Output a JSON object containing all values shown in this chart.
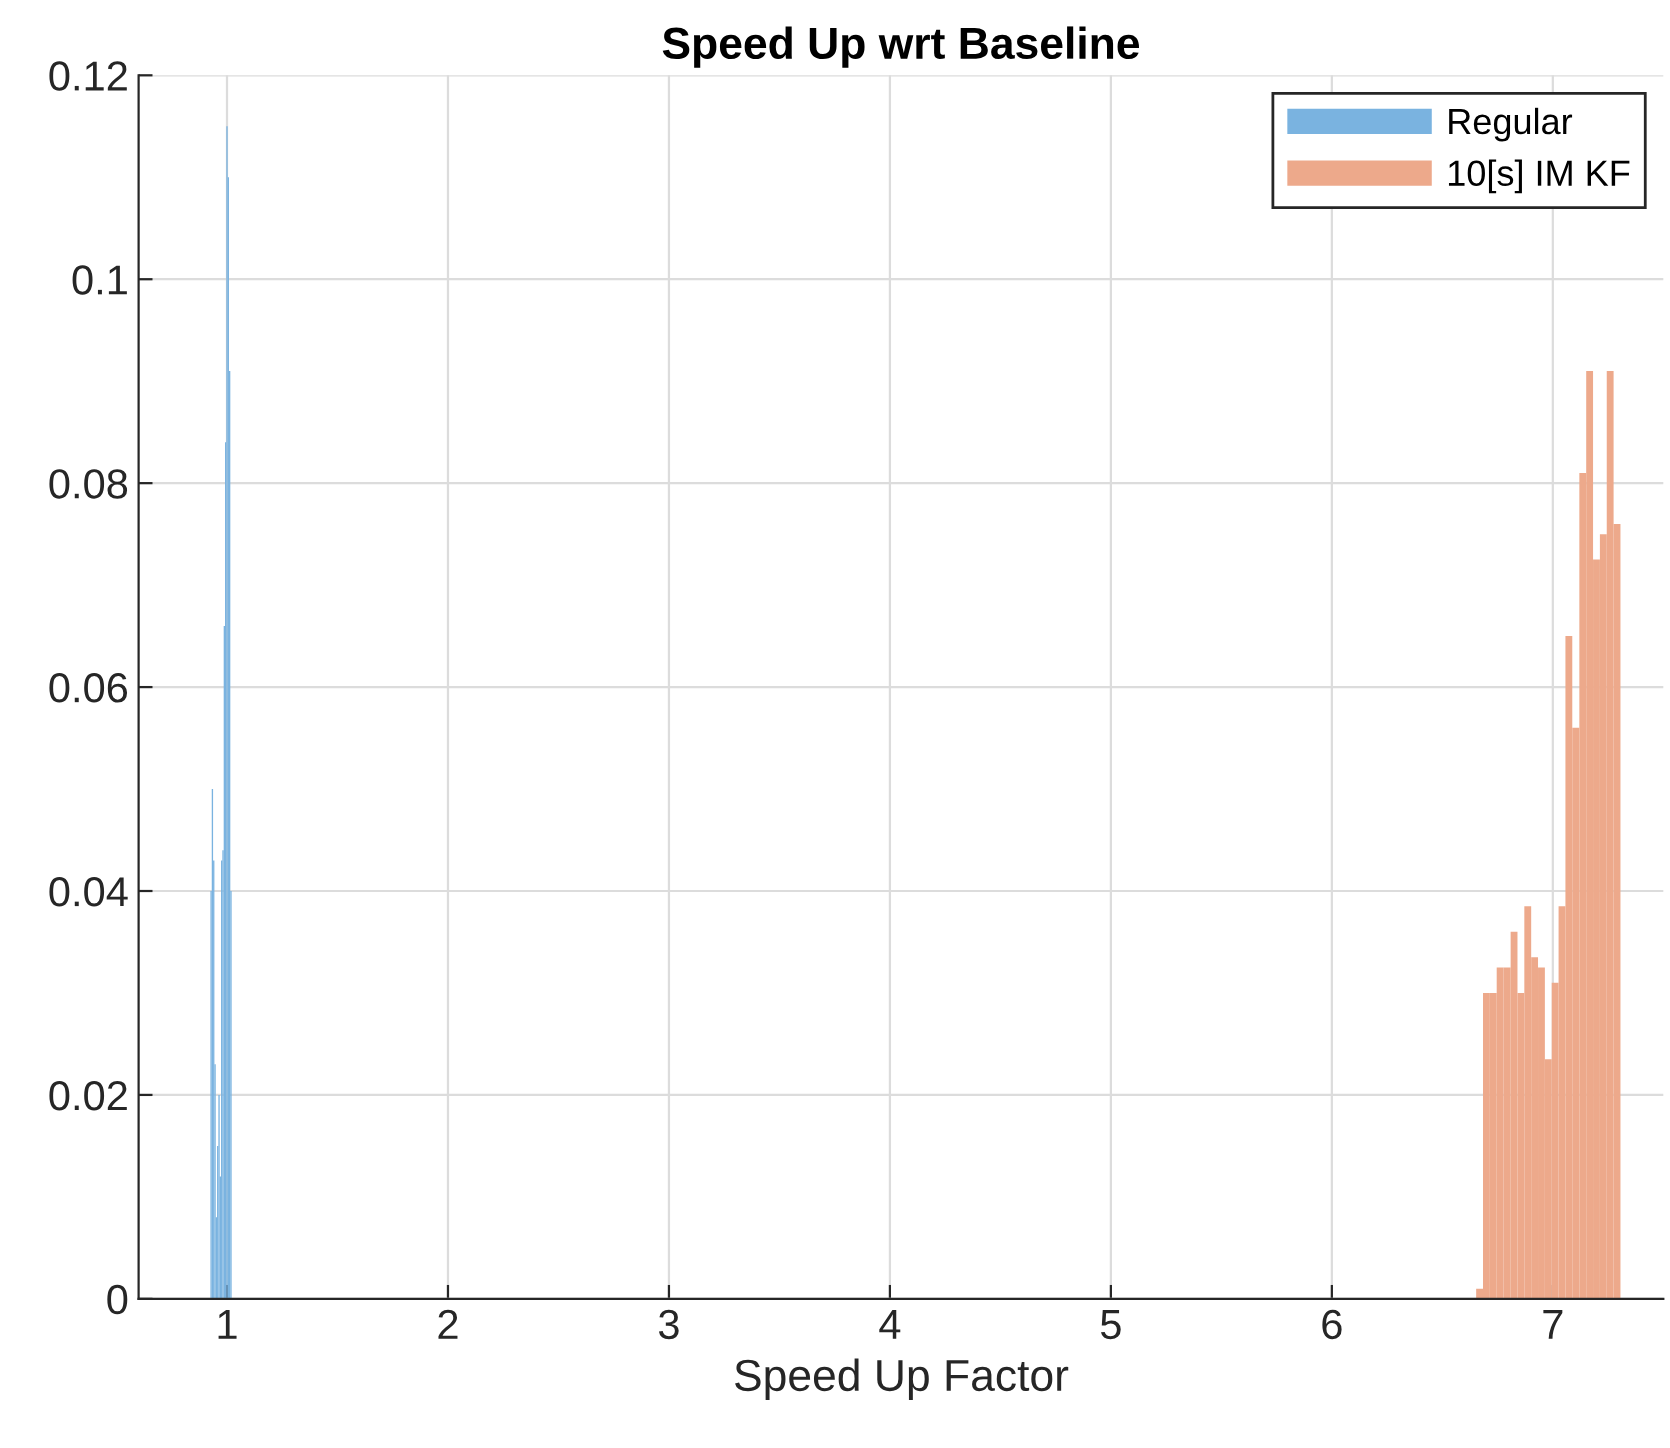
{
  "chart_data": {
    "type": "histogram",
    "title": "Speed Up wrt Baseline",
    "xlabel": "Speed Up Factor",
    "bins": [
      0.925,
      0.931,
      0.937,
      0.943,
      0.949,
      0.955,
      0.961,
      0.967,
      0.973,
      0.979,
      0.985,
      0.991,
      0.997,
      1.003,
      1.009,
      1.015,
      1.021,
      6.653,
      6.684,
      6.715,
      6.746,
      6.777,
      6.809,
      6.84,
      6.871,
      6.902,
      6.933,
      6.964,
      6.995,
      7.026,
      7.057,
      7.088,
      7.12,
      7.151,
      7.182,
      7.213,
      7.244,
      7.275,
      7.306
    ],
    "series": [
      {
        "name": "Regular",
        "color": "#7ab3e0",
        "values": [
          0.04,
          0.05,
          0.043,
          0.023,
          0.008,
          0.015,
          0.02,
          0.012,
          0.043,
          0.044,
          0.066,
          0.084,
          0.115,
          0.11,
          0.091,
          0.04,
          0,
          null,
          null,
          null,
          null,
          null,
          null,
          null,
          null,
          null,
          null,
          null,
          null,
          null,
          null,
          null,
          null,
          null,
          null,
          null,
          null,
          null
        ]
      },
      {
        "name": "10[s] IM KF",
        "color": "#eda98b",
        "values": [
          null,
          null,
          null,
          null,
          null,
          null,
          null,
          null,
          null,
          null,
          null,
          null,
          null,
          null,
          null,
          null,
          0,
          0.001,
          0.03,
          0.03,
          0.0325,
          0.0325,
          0.036,
          0.03,
          0.0385,
          0.0335,
          0.0325,
          0.0235,
          0.031,
          0.0385,
          0.065,
          0.056,
          0.081,
          0.091,
          0.0725,
          0.075,
          0.091,
          0.076
        ]
      }
    ],
    "xlim": [
      0.6,
      7.5
    ],
    "xticks": [
      1,
      2,
      3,
      4,
      5,
      6,
      7
    ],
    "ylim": [
      0,
      0.12
    ],
    "yticks": [
      0,
      0.02,
      0.04,
      0.06,
      0.08,
      0.1,
      0.12
    ],
    "grid": true,
    "legend": "top right"
  }
}
